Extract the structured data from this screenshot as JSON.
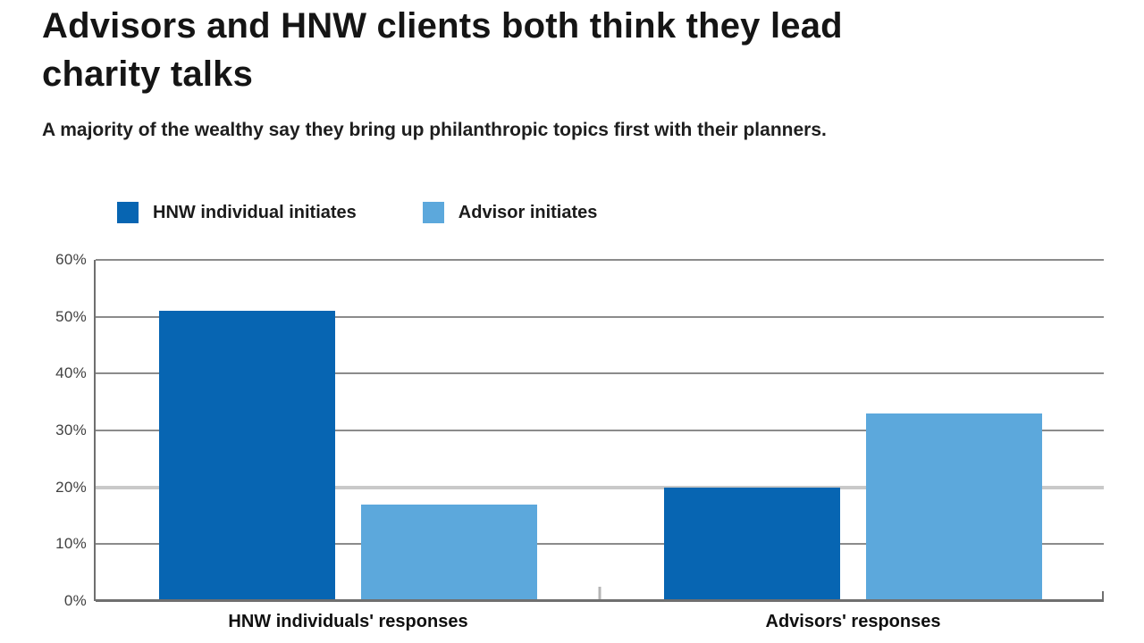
{
  "header": {
    "title": "Advisors and HNW clients both think they lead charity talks",
    "subtitle": "A majority of the wealthy say they bring up philanthropic topics first with their planners."
  },
  "legend": {
    "items": [
      {
        "label": "HNW individual initiates",
        "color": "#0765b2"
      },
      {
        "label": "Advisor initiates",
        "color": "#5ca8dc"
      }
    ]
  },
  "chart_data": {
    "type": "bar",
    "title": "Advisors and HNW clients both think they lead charity talks",
    "subtitle": "A majority of the wealthy say they bring up philanthropic topics first with their planners.",
    "categories": [
      "HNW individuals' responses",
      "Advisors' responses"
    ],
    "series": [
      {
        "name": "HNW individual initiates",
        "color": "#0765b2",
        "values": [
          51,
          20
        ]
      },
      {
        "name": "Advisor initiates",
        "color": "#5ca8dc",
        "values": [
          17,
          33
        ]
      }
    ],
    "xlabel": "",
    "ylabel": "",
    "ylim": [
      0,
      60
    ],
    "ytick_step": 10,
    "ytick_labels": [
      "0%",
      "10%",
      "20%",
      "30%",
      "40%",
      "50%",
      "60%"
    ],
    "grid": true,
    "legend_position": "top-left",
    "highlight_gridline_at": 20,
    "axis_color": "#6f6f6f",
    "grid_color": "#8b8b8b",
    "highlight_grid_color": "#c9c9c9",
    "tick_label_color": "#414141"
  }
}
